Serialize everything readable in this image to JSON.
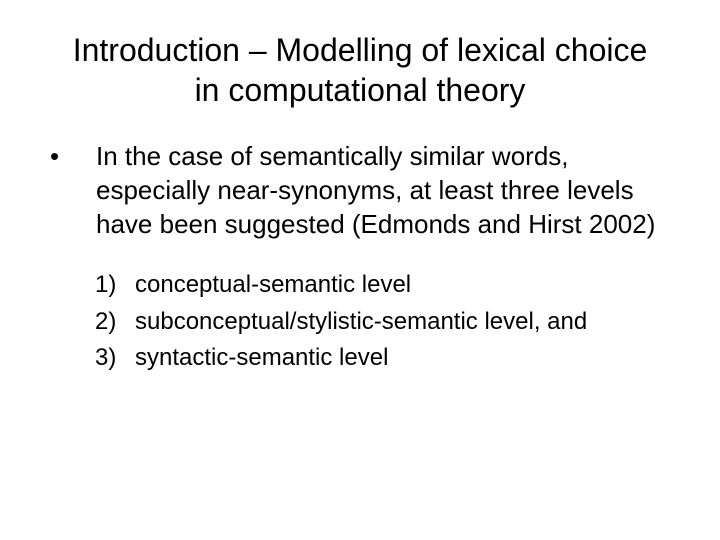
{
  "title": "Introduction – Modelling of lexical choice in computational theory",
  "bullet": {
    "marker": "•",
    "text": "In the case of semantically similar words, especially near-synonyms, at least three levels have been suggested (Edmonds and Hirst 2002)"
  },
  "items": [
    {
      "num": "1)",
      "text": "conceptual-semantic level"
    },
    {
      "num": "2)",
      "text": "subconceptual/stylistic-semantic level, and"
    },
    {
      "num": "3)",
      "text": "syntactic-semantic level"
    }
  ],
  "colors": {
    "background": "#ffffff",
    "text": "#000000"
  },
  "typography": {
    "title_fontsize": 32,
    "bullet_fontsize": 26,
    "item_fontsize": 24,
    "font_family": "Arial"
  }
}
